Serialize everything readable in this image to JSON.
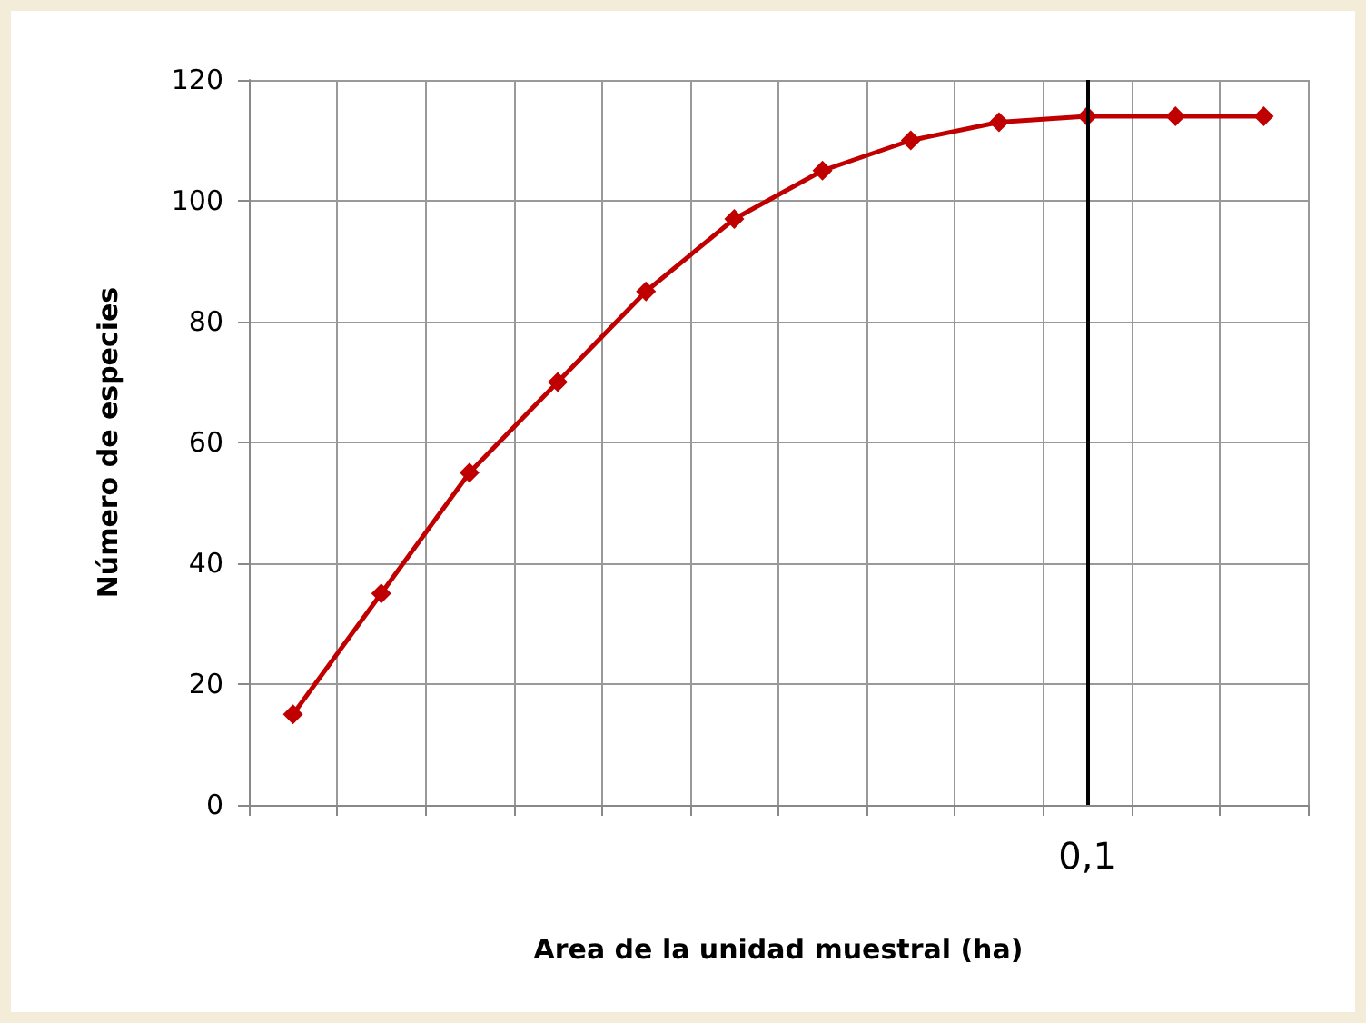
{
  "chart_data": {
    "type": "line",
    "xlabel": "Area de la unidad muestral (ha)",
    "ylabel": "Número de especies",
    "categories": [
      null,
      null,
      null,
      null,
      null,
      null,
      null,
      null,
      null,
      null,
      null,
      null
    ],
    "series": [
      {
        "color": "#c00000",
        "values": [
          15,
          35,
          55,
          70,
          85,
          97,
          105,
          110,
          113,
          114,
          114,
          114
        ]
      }
    ],
    "ylim": [
      0,
      120
    ],
    "yticks": [
      0,
      20,
      40,
      60,
      80,
      100,
      120
    ],
    "grid": true,
    "marker": "diamond",
    "line_style": "solid",
    "annotations": [
      "0,1"
    ]
  }
}
